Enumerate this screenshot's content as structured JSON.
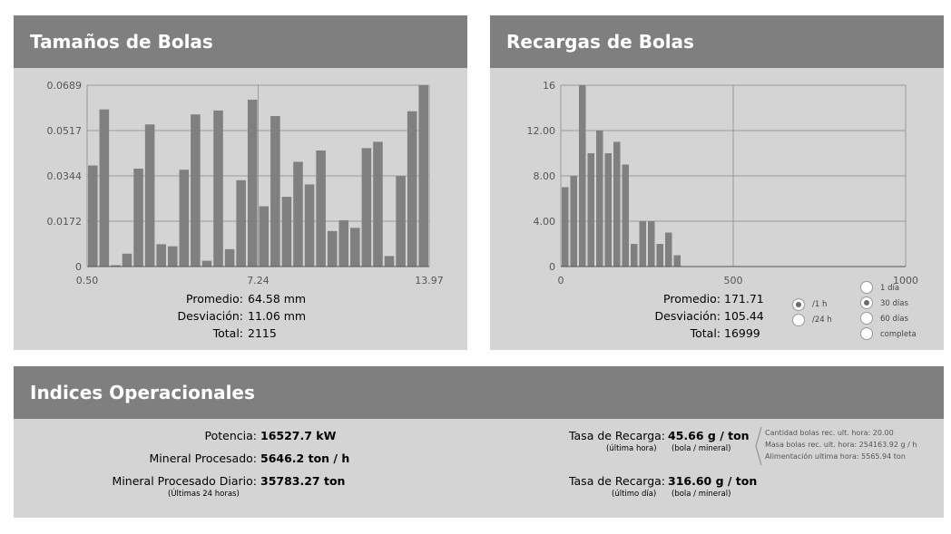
{
  "panels": {
    "sizes_title": "Tamaños de Bolas",
    "recharges_title": "Recargas de Bolas",
    "indices_title": "Indices Operacionales"
  },
  "sizes_stats": {
    "avg_label": "Promedio:",
    "avg_value": "64.58 mm",
    "dev_label": "Desviación:",
    "dev_value": "11.06 mm",
    "total_label": "Total:",
    "total_value": "2115"
  },
  "recharges_stats": {
    "avg_label": "Promedio:",
    "avg_value": "171.71",
    "dev_label": "Desviación:",
    "dev_value": "105.44",
    "total_label": "Total:",
    "total_value": "16999"
  },
  "rate_options": [
    {
      "label": "/1 h",
      "checked": true
    },
    {
      "label": "/24 h",
      "checked": false
    }
  ],
  "period_options": [
    {
      "label": "1 día",
      "checked": false
    },
    {
      "label": "30 días",
      "checked": true
    },
    {
      "label": "60 días",
      "checked": false
    },
    {
      "label": "completa",
      "checked": false
    }
  ],
  "indices": {
    "potencia_label": "Potencia:",
    "potencia_value": "16527.7 kW",
    "mineral_label": "Mineral Procesado:",
    "mineral_value": "5646.2 ton / h",
    "diario_label": "Mineral Procesado Diario:",
    "diario_value": "35783.27 ton",
    "diario_sub": "(Últimas 24 horas)",
    "tasa1_label": "Tasa de Recarga:",
    "tasa1_value": "45.66 g / ton",
    "tasa1_sub1": "(última hora)",
    "tasa1_sub2": "(bola / mineral)",
    "tasa2_label": "Tasa de Recarga:",
    "tasa2_value": "316.60 g / ton",
    "tasa2_sub1": "(último día)",
    "tasa2_sub2": "(bola / mineral)",
    "note1": "Cantidad bolas rec. ult. hora: 20.00",
    "note2": "Masa bolas rec. ult. hora: 254163.92 g / h",
    "note3": "Alimentación ultima hora: 5565.94 ton"
  },
  "chart_data": [
    {
      "type": "bar",
      "title": "Tamaños de Bolas",
      "xlim": [
        0.5,
        13.97
      ],
      "ylim": [
        0,
        0.0689
      ],
      "x_ticks": [
        "0.50",
        "7.24",
        "13.97"
      ],
      "y_ticks": [
        "0",
        "0.0172",
        "0.0344",
        "0.0517",
        "0.0689"
      ],
      "bar_color": "#808080",
      "values": [
        0.0384,
        0.0597,
        0.0005,
        0.0049,
        0.0372,
        0.054,
        0.0085,
        0.0077,
        0.0368,
        0.0578,
        0.0022,
        0.0593,
        0.0066,
        0.0328,
        0.0634,
        0.0229,
        0.0572,
        0.0265,
        0.0398,
        0.0312,
        0.0441,
        0.0135,
        0.0176,
        0.0147,
        0.045,
        0.0474,
        0.004,
        0.0344,
        0.059,
        0.0689
      ]
    },
    {
      "type": "bar",
      "title": "Recargas de Bolas",
      "xlim": [
        0,
        1000
      ],
      "ylim": [
        0,
        16
      ],
      "x_ticks": [
        "0",
        "500",
        "1000"
      ],
      "y_ticks": [
        "0",
        "4.00",
        "8.00",
        "12.00",
        "16"
      ],
      "bar_color": "#808080",
      "bin_width": 25,
      "values": [
        7,
        8,
        16,
        10,
        12,
        10,
        11,
        9,
        2,
        4,
        4,
        2,
        3,
        1
      ]
    }
  ]
}
